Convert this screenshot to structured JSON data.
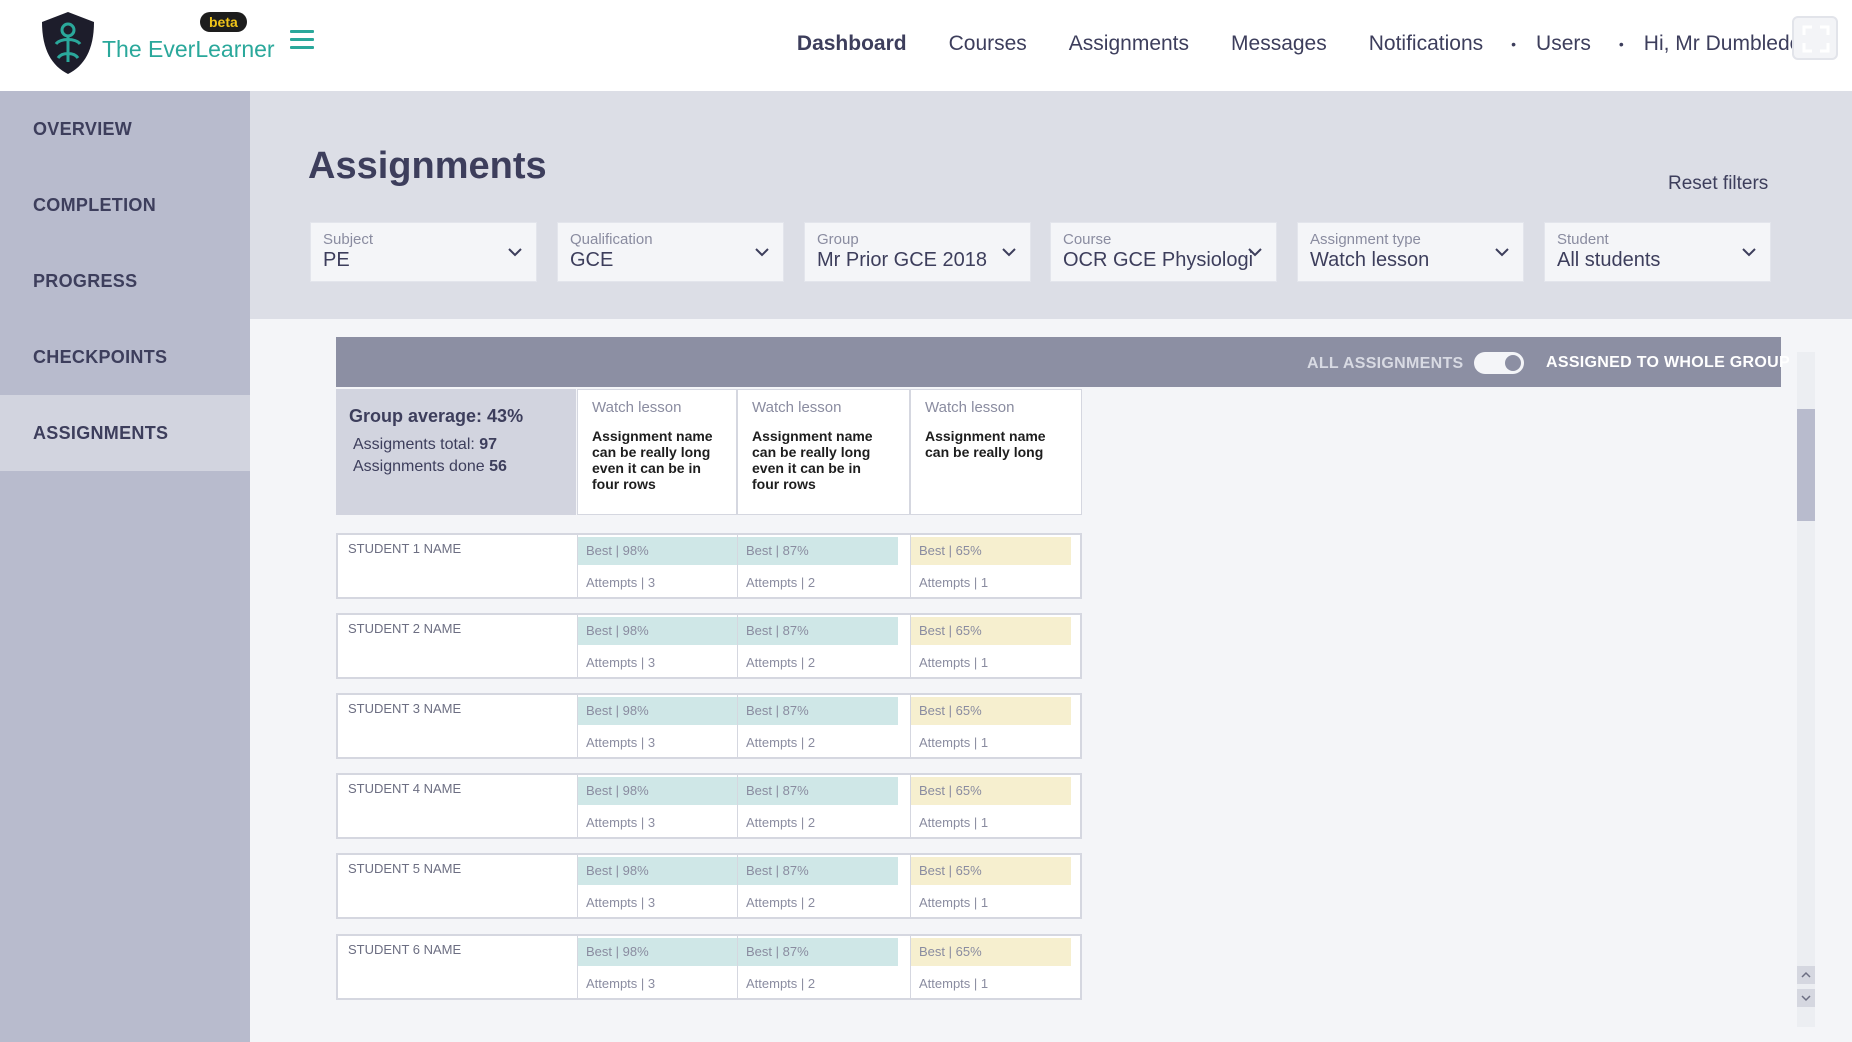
{
  "header": {
    "brand": "The EverLearner",
    "beta": "beta",
    "nav": [
      "Dashboard",
      "Courses",
      "Assignments",
      "Messages",
      "Notifications",
      "Users",
      "Hi, Mr Dumbledore"
    ],
    "nav_separator": "•"
  },
  "sidebar": {
    "items": [
      "OVERVIEW",
      "COMPLETION",
      "PROGRESS",
      "CHECKPOINTS",
      "ASSIGNMENTS"
    ],
    "active": "ASSIGNMENTS"
  },
  "page": {
    "title": "Assignments",
    "reset_filters": "Reset filters"
  },
  "filters": [
    {
      "label": "Subject",
      "value": "PE"
    },
    {
      "label": "Qualification",
      "value": "GCE"
    },
    {
      "label": "Group",
      "value": "Mr Prior GCE 2018"
    },
    {
      "label": "Course",
      "value": "OCR GCE Physiologic"
    },
    {
      "label": "Assignment type",
      "value": "Watch lesson"
    },
    {
      "label": "Student",
      "value": "All students"
    }
  ],
  "toolbar": {
    "all_assignments": "ALL ASSIGNMENTS",
    "assigned_to_whole_group": "ASSIGNED TO WHOLE GROUP",
    "toggle_on": true
  },
  "summary": {
    "group_average": "Group average: 43%",
    "total_label": "Assigments total:",
    "total_value": "97",
    "done_label": "Assignments done",
    "done_value": "56"
  },
  "columns": [
    {
      "type": "Watch lesson",
      "name": "Assignment name can be really long even it can be in four rows"
    },
    {
      "type": "Watch lesson",
      "name": "Assignment name can be really long even it can be in four rows"
    },
    {
      "type": "Watch lesson",
      "name": "Assignment name can be really long"
    }
  ],
  "students": [
    {
      "name": "STUDENT 1 NAME",
      "cells": [
        {
          "best": "Best | 98%",
          "attempts": "Attempts | 3"
        },
        {
          "best": "Best | 87%",
          "attempts": "Attempts | 2"
        },
        {
          "best": "Best | 65%",
          "attempts": "Attempts | 1"
        }
      ]
    },
    {
      "name": "STUDENT 2 NAME",
      "cells": [
        {
          "best": "Best | 98%",
          "attempts": "Attempts | 3"
        },
        {
          "best": "Best | 87%",
          "attempts": "Attempts | 2"
        },
        {
          "best": "Best | 65%",
          "attempts": "Attempts | 1"
        }
      ]
    },
    {
      "name": "STUDENT 3 NAME",
      "cells": [
        {
          "best": "Best | 98%",
          "attempts": "Attempts | 3"
        },
        {
          "best": "Best | 87%",
          "attempts": "Attempts | 2"
        },
        {
          "best": "Best | 65%",
          "attempts": "Attempts | 1"
        }
      ]
    },
    {
      "name": "STUDENT 4 NAME",
      "cells": [
        {
          "best": "Best | 98%",
          "attempts": "Attempts | 3"
        },
        {
          "best": "Best | 87%",
          "attempts": "Attempts | 2"
        },
        {
          "best": "Best | 65%",
          "attempts": "Attempts | 1"
        }
      ]
    },
    {
      "name": "STUDENT 5 NAME",
      "cells": [
        {
          "best": "Best | 98%",
          "attempts": "Attempts | 3"
        },
        {
          "best": "Best | 87%",
          "attempts": "Attempts | 2"
        },
        {
          "best": "Best | 65%",
          "attempts": "Attempts | 1"
        }
      ]
    },
    {
      "name": "STUDENT 6 NAME",
      "cells": [
        {
          "best": "Best | 98%",
          "attempts": "Attempts | 3"
        },
        {
          "best": "Best | 87%",
          "attempts": "Attempts | 2"
        },
        {
          "best": "Best | 65%",
          "attempts": "Attempts | 1"
        }
      ]
    }
  ],
  "colors": {
    "brand": "#2aa89b",
    "sidebar": "#b8bbcd",
    "bar": "#8c8fa3",
    "high_score": "#cfe7e7",
    "mid_score": "#f6efcf"
  }
}
